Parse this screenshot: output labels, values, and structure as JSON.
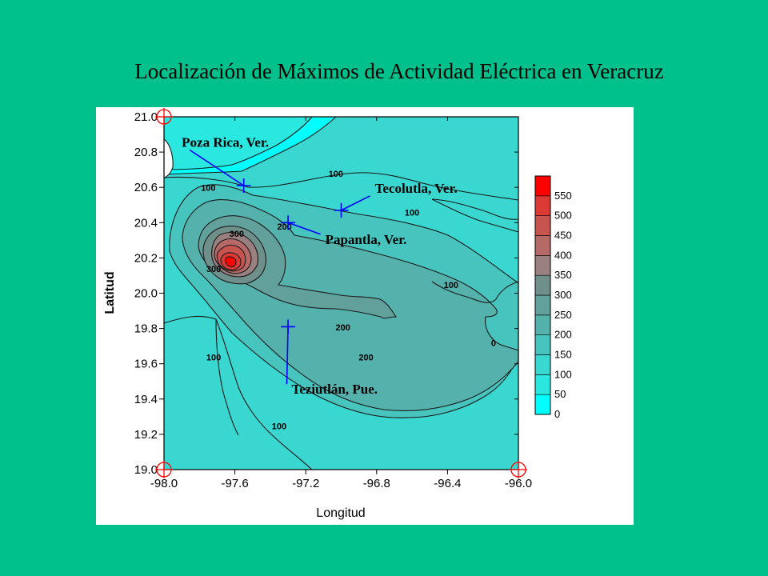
{
  "slide": {
    "title": "Localización de Máximos de Actividad Eléctrica en Veracruz"
  },
  "chart_data": {
    "type": "contour",
    "xlabel": "Longitud",
    "ylabel": "Latitud",
    "xlim": [
      -98.0,
      -96.0
    ],
    "ylim": [
      19.0,
      21.0
    ],
    "xticks": [
      -98.0,
      -97.6,
      -97.2,
      -96.8,
      -96.4,
      -96.0
    ],
    "yticks": [
      19.0,
      19.2,
      19.4,
      19.6,
      19.8,
      20.0,
      20.2,
      20.4,
      20.6,
      20.8,
      21.0
    ],
    "xtick_labels": [
      "-98.0",
      "-97.6",
      "-97.2",
      "-96.8",
      "-96.4",
      "-96.0"
    ],
    "ytick_labels": [
      "19.0",
      "19.2",
      "19.4",
      "19.6",
      "19.8",
      "20.0",
      "20.2",
      "20.4",
      "20.6",
      "20.8",
      "21.0"
    ],
    "maximum": {
      "lon": -97.65,
      "lat": 20.17
    },
    "colorbar": {
      "levels": [
        0,
        50,
        100,
        150,
        200,
        250,
        300,
        350,
        400,
        450,
        500,
        550
      ],
      "labels": [
        "0",
        "50",
        "100",
        "150",
        "200",
        "250",
        "300",
        "350",
        "400",
        "450",
        "500",
        "550"
      ],
      "colors": [
        "#00ffff",
        "#2ae8e0",
        "#3ad6d0",
        "#48c4be",
        "#55b1ac",
        "#62a09b",
        "#6f908a",
        "#9a8080",
        "#b56a68",
        "#c85450",
        "#dc3a34",
        "#ff0000"
      ]
    },
    "contour_labels": [
      {
        "text": "100",
        "lon": -97.75,
        "lat": 20.58
      },
      {
        "text": "100",
        "lon": -97.03,
        "lat": 20.66
      },
      {
        "text": "100",
        "lon": -96.6,
        "lat": 20.44
      },
      {
        "text": "100",
        "lon": -96.38,
        "lat": 20.03
      },
      {
        "text": "100",
        "lon": -97.72,
        "lat": 19.62
      },
      {
        "text": "100",
        "lon": -97.35,
        "lat": 19.23
      },
      {
        "text": "200",
        "lon": -97.32,
        "lat": 20.36
      },
      {
        "text": "200",
        "lon": -96.99,
        "lat": 19.79
      },
      {
        "text": "200",
        "lon": -96.86,
        "lat": 19.62
      },
      {
        "text": "300",
        "lon": -97.59,
        "lat": 20.32
      },
      {
        "text": "300",
        "lon": -97.72,
        "lat": 20.12
      },
      {
        "text": "0",
        "lon": -96.14,
        "lat": 19.7
      }
    ],
    "markers": [
      {
        "name": "Poza Rica, Ver.",
        "lon": -97.55,
        "lat": 20.61,
        "label_lon": -97.9,
        "label_lat": 20.83
      },
      {
        "name": "Tecolutla, Ver.",
        "lon": -97.0,
        "lat": 20.47,
        "label_lon": -96.81,
        "label_lat": 20.57
      },
      {
        "name": "Papantla, Ver.",
        "lon": -97.3,
        "lat": 20.4,
        "label_lon": -97.09,
        "label_lat": 20.28
      },
      {
        "name": "Teziutlán, Pue.",
        "lon": -97.3,
        "lat": 19.81,
        "label_lon": -97.28,
        "label_lat": 19.43
      }
    ],
    "registration_marks": [
      {
        "lon": -98.0,
        "lat": 21.0
      },
      {
        "lon": -98.0,
        "lat": 19.0
      },
      {
        "lon": -96.0,
        "lat": 19.0
      }
    ]
  }
}
